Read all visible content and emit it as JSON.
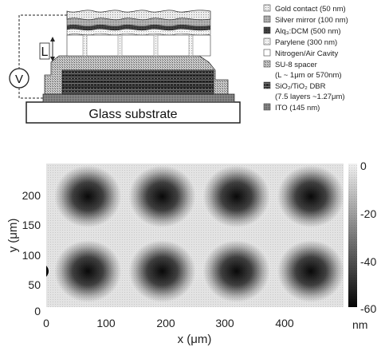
{
  "schematic": {
    "glass_label": "Glass substrate",
    "voltage_symbol": "V",
    "length_symbol": "L"
  },
  "legend": {
    "items": [
      {
        "key": "gold",
        "lines": [
          "Gold contact (50 nm)"
        ]
      },
      {
        "key": "silver",
        "lines": [
          "Silver mirror (100 nm)"
        ]
      },
      {
        "key": "alq3",
        "lines": [
          "Alq₃:DCM (500 nm)"
        ]
      },
      {
        "key": "parylene",
        "lines": [
          "Parylene (300 nm)"
        ]
      },
      {
        "key": "cavity",
        "lines": [
          "Nitrogen/Air Cavity"
        ]
      },
      {
        "key": "su8",
        "lines": [
          "SU-8 spacer",
          "(L ~ 1μm or 570nm)"
        ]
      },
      {
        "key": "dbr",
        "lines": [
          "SiO₂/TiO₂ DBR",
          "(7.5 layers ~1.27μm)"
        ]
      },
      {
        "key": "ito",
        "lines": [
          "ITO (145 nm)"
        ]
      }
    ]
  },
  "map": {
    "xlabel": "x (μm)",
    "ylabel": "y (μm)",
    "xticks": [
      "0",
      "100",
      "200",
      "300",
      "400"
    ],
    "yticks": [
      "0",
      "50",
      "100",
      "150",
      "200"
    ],
    "colorbar_ticks": [
      "0",
      "-20",
      "-40",
      "-60"
    ],
    "colorbar_unit": "nm"
  },
  "chart_data": {
    "type": "heatmap",
    "xlabel": "x (μm)",
    "ylabel": "y (μm)",
    "xlim": [
      0,
      500
    ],
    "ylim": [
      0,
      240
    ],
    "zlim": [
      -60,
      0
    ],
    "z_unit": "nm",
    "colormap": "gray",
    "colorbar_ticks": [
      0,
      -20,
      -40,
      -60
    ],
    "minima": [
      {
        "x": 70,
        "y": 185,
        "depth": -60
      },
      {
        "x": 195,
        "y": 185,
        "depth": -60
      },
      {
        "x": 320,
        "y": 185,
        "depth": -60
      },
      {
        "x": 445,
        "y": 185,
        "depth": -60
      },
      {
        "x": 70,
        "y": 60,
        "depth": -60
      },
      {
        "x": 195,
        "y": 60,
        "depth": -60
      },
      {
        "x": 320,
        "y": 60,
        "depth": -60
      },
      {
        "x": 445,
        "y": 60,
        "depth": -60
      }
    ]
  }
}
